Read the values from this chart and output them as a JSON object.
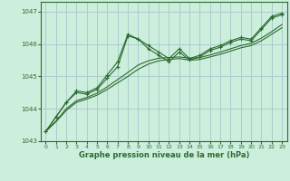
{
  "background_color": "#cceedd",
  "grid_color": "#aacccc",
  "line_color": "#2d6b2d",
  "title": "Graphe pression niveau de la mer (hPa)",
  "xlim": [
    -0.5,
    23.5
  ],
  "ylim": [
    1043.0,
    1047.3
  ],
  "yticks": [
    1043,
    1044,
    1045,
    1046,
    1047
  ],
  "xticks": [
    0,
    1,
    2,
    3,
    4,
    5,
    6,
    7,
    8,
    9,
    10,
    11,
    12,
    13,
    14,
    15,
    16,
    17,
    18,
    19,
    20,
    21,
    22,
    23
  ],
  "s1": [
    1043.3,
    1043.75,
    1044.2,
    1044.55,
    1044.5,
    1044.65,
    1045.05,
    1045.45,
    1046.3,
    1046.15,
    1045.95,
    1045.75,
    1045.55,
    1045.85,
    1045.55,
    1045.65,
    1045.85,
    1045.95,
    1046.1,
    1046.2,
    1046.15,
    1046.5,
    1046.85,
    1046.95
  ],
  "s2": [
    1043.3,
    1043.75,
    1044.2,
    1044.5,
    1044.45,
    1044.6,
    1044.95,
    1045.3,
    1046.25,
    1046.15,
    1045.85,
    1045.65,
    1045.45,
    1045.75,
    1045.5,
    1045.6,
    1045.8,
    1045.9,
    1046.05,
    1046.15,
    1046.1,
    1046.45,
    1046.8,
    1046.9
  ],
  "s3": [
    1043.3,
    1043.6,
    1043.95,
    1044.2,
    1044.3,
    1044.42,
    1044.6,
    1044.8,
    1045.0,
    1045.22,
    1045.38,
    1045.48,
    1045.52,
    1045.55,
    1045.5,
    1045.52,
    1045.6,
    1045.68,
    1045.78,
    1045.88,
    1045.95,
    1046.1,
    1046.3,
    1046.5
  ],
  "s4": [
    1043.3,
    1043.62,
    1044.0,
    1044.25,
    1044.35,
    1044.48,
    1044.68,
    1044.9,
    1045.12,
    1045.35,
    1045.48,
    1045.56,
    1045.58,
    1045.6,
    1045.56,
    1045.58,
    1045.66,
    1045.75,
    1045.85,
    1045.95,
    1046.02,
    1046.18,
    1046.38,
    1046.6
  ]
}
